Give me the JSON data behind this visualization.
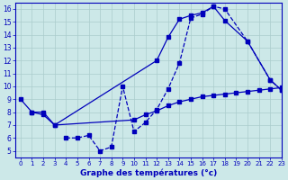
{
  "line1_x": [
    0,
    1,
    2,
    3,
    12,
    13,
    14,
    15,
    16,
    17,
    18,
    20,
    22,
    23
  ],
  "line1_y": [
    9.0,
    8.0,
    8.0,
    7.0,
    12.0,
    13.8,
    15.2,
    15.5,
    15.7,
    16.2,
    15.1,
    13.5,
    10.5,
    9.7
  ],
  "line2_x": [
    1,
    2,
    3,
    10,
    11,
    12,
    13,
    14,
    15,
    16,
    17,
    18,
    19,
    20,
    21,
    22,
    23
  ],
  "line2_y": [
    8.0,
    7.8,
    7.0,
    7.4,
    7.8,
    8.1,
    8.5,
    8.8,
    9.0,
    9.2,
    9.3,
    9.4,
    9.5,
    9.6,
    9.7,
    9.8,
    9.9
  ],
  "line3_x": [
    4,
    5,
    6,
    7,
    8,
    9,
    10,
    11,
    12,
    13,
    14,
    15,
    16,
    17,
    18,
    20,
    22,
    23
  ],
  "line3_y": [
    6.0,
    6.0,
    6.2,
    5.0,
    5.3,
    10.0,
    6.5,
    7.2,
    8.2,
    9.8,
    11.8,
    15.3,
    15.6,
    16.2,
    16.0,
    13.5,
    10.5,
    9.7
  ],
  "bg_color": "#cce8e8",
  "grid_color": "#aacccc",
  "line_color": "#0000bb",
  "xlabel": "Graphe des températures (°c)",
  "xlim": [
    -0.5,
    23
  ],
  "ylim": [
    4.5,
    16.5
  ],
  "xticks": [
    0,
    1,
    2,
    3,
    4,
    5,
    6,
    7,
    8,
    9,
    10,
    11,
    12,
    13,
    14,
    15,
    16,
    17,
    18,
    19,
    20,
    21,
    22,
    23
  ],
  "yticks": [
    5,
    6,
    7,
    8,
    9,
    10,
    11,
    12,
    13,
    14,
    15,
    16
  ]
}
